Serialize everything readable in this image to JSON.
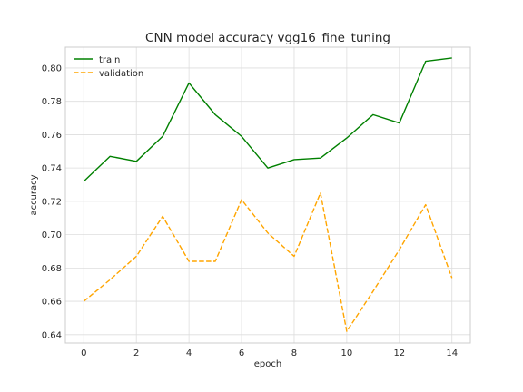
{
  "chart_data": {
    "type": "line",
    "title": "CNN model accuracy vgg16_fine_tuning",
    "xlabel": "epoch",
    "ylabel": "accuracy",
    "xlim": [
      -0.7,
      14.7
    ],
    "ylim": [
      0.635,
      0.8125
    ],
    "xticks": [
      0,
      2,
      4,
      6,
      8,
      10,
      12,
      14
    ],
    "yticks": [
      0.64,
      0.66,
      0.68,
      0.7,
      0.72,
      0.74,
      0.76,
      0.78,
      0.8
    ],
    "ytick_labels": [
      "0.64",
      "0.66",
      "0.68",
      "0.70",
      "0.72",
      "0.74",
      "0.76",
      "0.78",
      "0.80"
    ],
    "grid": true,
    "legend_position": "top-left",
    "x": [
      0,
      1,
      2,
      3,
      4,
      5,
      6,
      7,
      8,
      9,
      10,
      11,
      12,
      13,
      14
    ],
    "series": [
      {
        "name": "train",
        "color": "#008000",
        "style": "solid",
        "values": [
          0.732,
          0.747,
          0.744,
          0.759,
          0.791,
          0.772,
          0.759,
          0.74,
          0.745,
          0.746,
          0.758,
          0.772,
          0.767,
          0.804,
          0.806
        ]
      },
      {
        "name": "validation",
        "color": "#ffa500",
        "style": "dashed",
        "values": [
          0.66,
          0.673,
          0.687,
          0.711,
          0.684,
          0.684,
          0.721,
          0.701,
          0.687,
          0.725,
          0.642,
          0.666,
          0.691,
          0.718,
          0.674
        ]
      }
    ]
  }
}
